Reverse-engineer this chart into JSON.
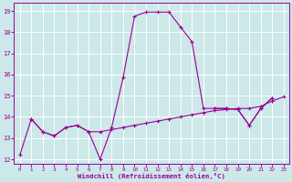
{
  "xlabel": "Windchill (Refroidissement éolien,°C)",
  "background_color": "#cce8e8",
  "line_color": "#990099",
  "grid_color": "#b8d8d8",
  "ylim": [
    11.8,
    19.4
  ],
  "xlim": [
    -0.5,
    23.5
  ],
  "yticks": [
    12,
    13,
    14,
    15,
    16,
    17,
    18,
    19
  ],
  "xticks": [
    0,
    1,
    2,
    3,
    4,
    5,
    6,
    7,
    8,
    9,
    10,
    11,
    12,
    13,
    14,
    15,
    16,
    17,
    18,
    19,
    20,
    21,
    22,
    23
  ],
  "line1_x": [
    0,
    1,
    2,
    3,
    4,
    5,
    6,
    7,
    8,
    9,
    10,
    11,
    12,
    13,
    14,
    15,
    16,
    17,
    18,
    19,
    20,
    21,
    22
  ],
  "line1_y": [
    12.2,
    13.9,
    13.3,
    13.1,
    13.5,
    13.6,
    13.3,
    12.0,
    13.5,
    15.85,
    18.75,
    18.95,
    18.95,
    18.95,
    18.25,
    17.55,
    14.4,
    14.4,
    14.4,
    14.35,
    13.6,
    14.4,
    14.9
  ],
  "line2_x": [
    1,
    2,
    3,
    4,
    5,
    6,
    7,
    8,
    9,
    10,
    11,
    12,
    13,
    14,
    15,
    16,
    17,
    18,
    19,
    20,
    21,
    22,
    23
  ],
  "line2_y": [
    13.9,
    13.3,
    13.1,
    13.5,
    13.6,
    13.3,
    13.3,
    13.4,
    13.5,
    13.6,
    13.7,
    13.8,
    13.9,
    14.0,
    14.1,
    14.2,
    14.3,
    14.35,
    14.4,
    14.4,
    14.5,
    14.75,
    14.95
  ],
  "line3_x": [
    17,
    18,
    19,
    20,
    21,
    22
  ],
  "line3_y": [
    14.4,
    14.4,
    14.35,
    13.6,
    14.4,
    14.9
  ]
}
